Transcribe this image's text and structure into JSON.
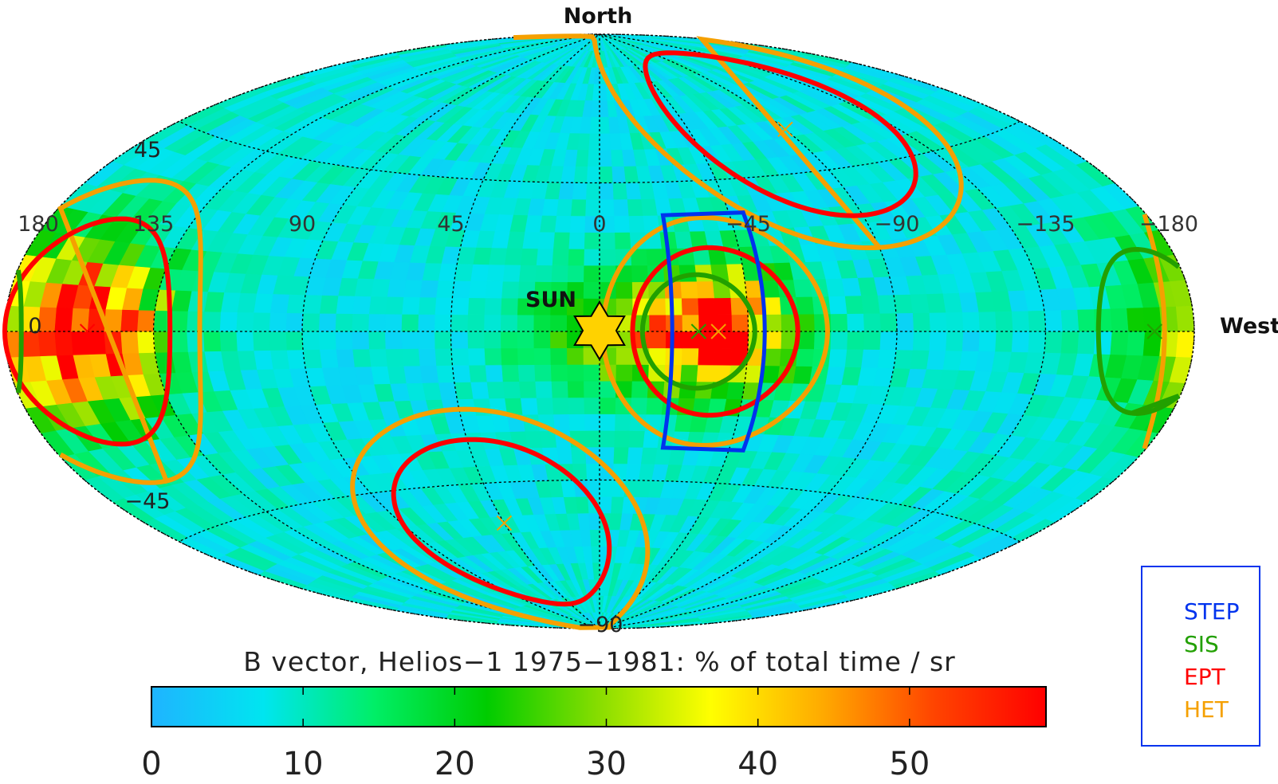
{
  "chart_data": {
    "type": "heatmap",
    "projection": "aitoff",
    "title": "B vector, Helios−1 1975−1981: % of total time / sr",
    "directions": {
      "north": "North",
      "west": "West",
      "sun": "SUN"
    },
    "lon_ticks": [
      {
        "value": 180,
        "label": "180"
      },
      {
        "value": 135,
        "label": "135"
      },
      {
        "value": 90,
        "label": "90"
      },
      {
        "value": 45,
        "label": "45"
      },
      {
        "value": 0,
        "label": "0"
      },
      {
        "value": -45,
        "label": "−45"
      },
      {
        "value": -90,
        "label": "−90"
      },
      {
        "value": -135,
        "label": "−135"
      },
      {
        "value": -180,
        "label": "−180"
      }
    ],
    "lat_ticks": [
      {
        "value": 45,
        "label": "45"
      },
      {
        "value": 0,
        "label": "0"
      },
      {
        "value": -45,
        "label": "−45"
      },
      {
        "value": -90,
        "label": "−90"
      }
    ],
    "colorbar": {
      "range": [
        0,
        59
      ],
      "ticks": [
        0,
        10,
        20,
        30,
        40,
        50
      ],
      "tick_labels": [
        "0",
        "10",
        "20",
        "30",
        "40",
        "50"
      ],
      "colormap": [
        "#1fb4ff",
        "#00e5f0",
        "#00ee66",
        "#00cc00",
        "#88dd00",
        "#ffff00",
        "#ffaa00",
        "#ff4400",
        "#ff0000"
      ]
    },
    "hotspots": [
      {
        "lon": 155,
        "lat": 0,
        "peak": 50
      },
      {
        "lon": -35,
        "lat": 0,
        "peak": 55
      },
      {
        "lon": 0,
        "lat": 0,
        "peak": 18
      },
      {
        "lon": -180,
        "lat": 0,
        "peak": 20
      }
    ],
    "background_level": 8,
    "grid": true,
    "instrument_fields": [
      {
        "instrument": "HET",
        "center": {
          "lon": 155,
          "lat": 0
        },
        "radius_deg": 34,
        "color": "#f5a000"
      },
      {
        "instrument": "EPT",
        "center": {
          "lon": 155,
          "lat": 0
        },
        "radius_deg": 25,
        "color": "#ff0000"
      },
      {
        "instrument": "HET",
        "center": {
          "lon": -35,
          "lat": 0
        },
        "radius_deg": 34,
        "color": "#f5a000"
      },
      {
        "instrument": "EPT",
        "center": {
          "lon": -35,
          "lat": 0
        },
        "radius_deg": 25,
        "color": "#ff0000"
      },
      {
        "instrument": "SIS",
        "center": {
          "lon": -30,
          "lat": 0
        },
        "radius_deg": 17,
        "color": "#22a000"
      },
      {
        "instrument": "SIS",
        "center": {
          "lon": -168,
          "lat": 0
        },
        "radius_deg": 17,
        "color": "#22a000"
      },
      {
        "instrument": "HET",
        "center": {
          "lon": -90,
          "lat": 57
        },
        "radius_deg": 34,
        "color": "#f5a000"
      },
      {
        "instrument": "EPT",
        "center": {
          "lon": -90,
          "lat": 57
        },
        "radius_deg": 25,
        "color": "#ff0000"
      },
      {
        "instrument": "HET",
        "center": {
          "lon": 45,
          "lat": -57
        },
        "radius_deg": 34,
        "color": "#f5a000"
      },
      {
        "instrument": "EPT",
        "center": {
          "lon": 45,
          "lat": -57
        },
        "radius_deg": 25,
        "color": "#ff0000"
      }
    ],
    "step_field": {
      "instrument": "STEP",
      "lon_range": [
        -22,
        -50
      ],
      "lat_range": [
        -35,
        35
      ],
      "color": "#0033ee"
    },
    "center_marks": [
      {
        "lon": 155,
        "lat": 0,
        "color": "#ff0000"
      },
      {
        "lon": -30,
        "lat": 0,
        "color": "#22a000"
      },
      {
        "lon": -36,
        "lat": 0,
        "color": "#f5a000"
      },
      {
        "lon": -168,
        "lat": 0,
        "color": "#22a000"
      },
      {
        "lon": -90,
        "lat": 57,
        "color": "#f5a000"
      },
      {
        "lon": 45,
        "lat": -57,
        "color": "#f5a000"
      }
    ],
    "legend": {
      "placement": "bottom-right",
      "items": [
        {
          "label": "STEP",
          "color": "#0033ee"
        },
        {
          "label": "SIS",
          "color": "#22a000"
        },
        {
          "label": "EPT",
          "color": "#ff0000"
        },
        {
          "label": "HET",
          "color": "#f5a000"
        }
      ],
      "border_color": "#0033ee"
    }
  }
}
